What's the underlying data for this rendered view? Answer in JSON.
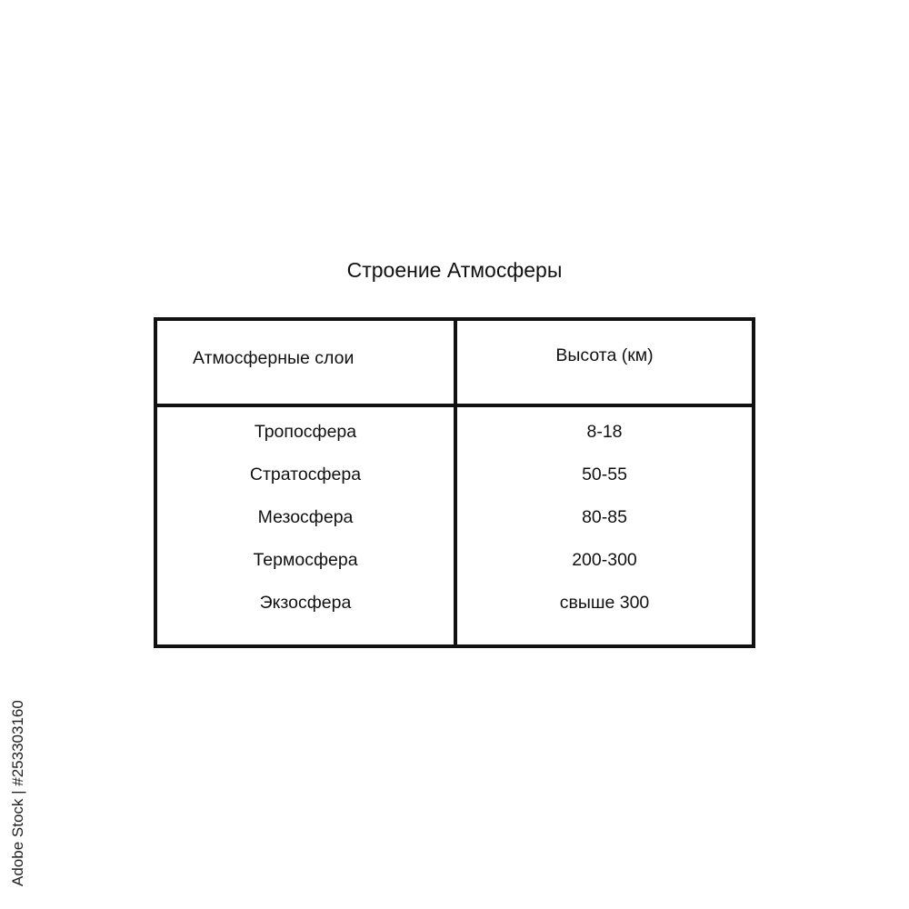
{
  "title": "Строение Атмосферы",
  "table": {
    "headers": [
      "Атмосферные слои",
      "Высота (км)"
    ],
    "rows": [
      [
        "Тропосфера",
        "8-18"
      ],
      [
        "Стратосфера",
        "50-55"
      ],
      [
        "Мезосфера",
        "80-85"
      ],
      [
        "Термосфера",
        "200-300"
      ],
      [
        "Экзосфера",
        "свыше 300"
      ]
    ]
  },
  "watermark": "Adobe Stock | #253303160"
}
